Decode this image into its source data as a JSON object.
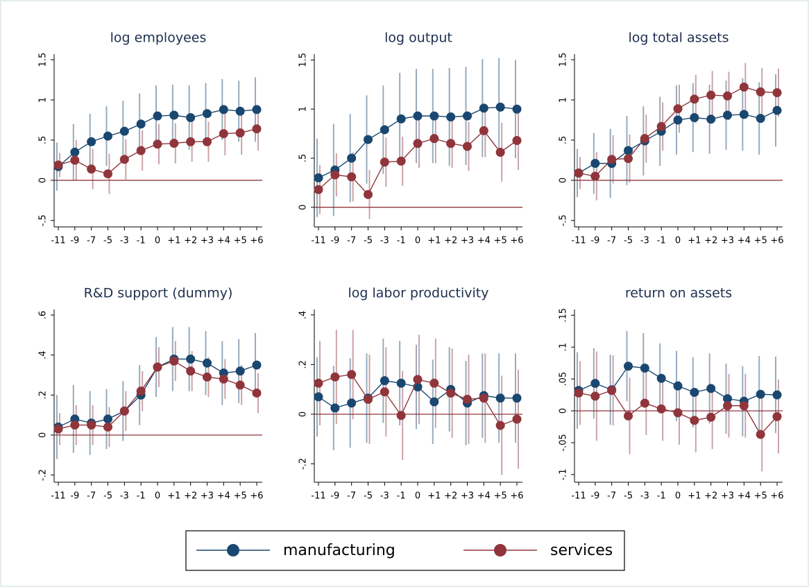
{
  "chart_data": [
    {
      "type": "line",
      "title": "log employees",
      "categories": [
        "-11",
        "-9",
        "-7",
        "-5",
        "-3",
        "-1",
        "0",
        "+1",
        "+2",
        "+3",
        "+4",
        "+5",
        "+6"
      ],
      "ylim": [
        -0.58,
        1.57
      ],
      "yticks": [
        {
          "value": -0.5,
          "label": "-.5"
        },
        0,
        {
          "value": 0.5,
          "label": ".5"
        },
        1,
        1.5
      ],
      "hline": 0,
      "series": [
        {
          "name": "manufacturing",
          "color": "#1a476f",
          "values": [
            0.17,
            0.35,
            0.48,
            0.55,
            0.61,
            0.7,
            0.8,
            0.81,
            0.78,
            0.83,
            0.88,
            0.86,
            0.88
          ],
          "errors": [
            0.3,
            0.35,
            0.35,
            0.37,
            0.38,
            0.38,
            0.38,
            0.38,
            0.4,
            0.38,
            0.38,
            0.38,
            0.4
          ]
        },
        {
          "name": "services",
          "color": "#90353b",
          "values": [
            0.19,
            0.25,
            0.14,
            0.08,
            0.26,
            0.37,
            0.45,
            0.46,
            0.48,
            0.48,
            0.58,
            0.59,
            0.64
          ],
          "errors": [
            0.15,
            0.25,
            0.25,
            0.25,
            0.25,
            0.25,
            0.25,
            0.25,
            0.25,
            0.25,
            0.27,
            0.27,
            0.27
          ]
        }
      ]
    },
    {
      "type": "line",
      "title": "log output",
      "categories": [
        "-11",
        "-9",
        "-7",
        "-5",
        "-3",
        "-1",
        "0",
        "+1",
        "+2",
        "+3",
        "+4",
        "+5",
        "+6"
      ],
      "ylim": [
        -0.2,
        1.56
      ],
      "yticks": [
        0,
        {
          "value": 0.5,
          "label": ".5"
        },
        1,
        1.5
      ],
      "hline": 0,
      "series": [
        {
          "color": "#1a476f",
          "values": [
            0.3,
            0.38,
            0.5,
            0.69,
            0.79,
            0.9,
            0.93,
            0.93,
            0.92,
            0.93,
            1.01,
            1.02,
            1.0
          ],
          "errors": [
            0.4,
            0.47,
            0.45,
            0.45,
            0.45,
            0.47,
            0.48,
            0.48,
            0.5,
            0.5,
            0.5,
            0.5,
            0.5
          ]
        },
        {
          "color": "#90353b",
          "values": [
            0.18,
            0.33,
            0.31,
            0.13,
            0.46,
            0.47,
            0.65,
            0.7,
            0.65,
            0.62,
            0.78,
            0.56,
            0.68
          ],
          "errors": [
            0.25,
            0.22,
            0.25,
            0.25,
            0.25,
            0.25,
            0.25,
            0.25,
            0.25,
            0.25,
            0.27,
            0.3,
            0.3
          ]
        }
      ]
    },
    {
      "type": "line",
      "title": "log total assets",
      "categories": [
        "-11",
        "-9",
        "-7",
        "-5",
        "-3",
        "-1",
        "0",
        "+1",
        "+2",
        "+3",
        "+4",
        "+5",
        "+6"
      ],
      "ylim": [
        -0.58,
        1.57
      ],
      "yticks": [
        {
          "value": -0.5,
          "label": "-.5"
        },
        0,
        {
          "value": 0.5,
          "label": ".5"
        },
        1,
        1.5
      ],
      "hline": 0,
      "series": [
        {
          "color": "#1a476f",
          "values": [
            0.09,
            0.21,
            0.21,
            0.37,
            0.49,
            0.61,
            0.75,
            0.78,
            0.76,
            0.81,
            0.82,
            0.77,
            0.87
          ],
          "errors": [
            0.3,
            0.38,
            0.43,
            0.43,
            0.43,
            0.43,
            0.43,
            0.43,
            0.43,
            0.43,
            0.45,
            0.45,
            0.45
          ]
        },
        {
          "color": "#90353b",
          "values": [
            0.09,
            0.05,
            0.26,
            0.27,
            0.52,
            0.67,
            0.89,
            1.01,
            1.06,
            1.05,
            1.16,
            1.1,
            1.09
          ],
          "errors": [
            0.2,
            0.3,
            0.3,
            0.3,
            0.3,
            0.3,
            0.3,
            0.3,
            0.3,
            0.3,
            0.3,
            0.3,
            0.3
          ]
        }
      ]
    },
    {
      "type": "line",
      "title": "R&D support (dummy)",
      "categories": [
        "-11",
        "-9",
        "-7",
        "-5",
        "-3",
        "-1",
        "0",
        "+1",
        "+2",
        "+3",
        "+4",
        "+5",
        "+6"
      ],
      "ylim": [
        -0.236,
        0.628
      ],
      "yticks": [
        {
          "value": -0.2,
          "label": "-.2"
        },
        0,
        {
          "value": 0.2,
          "label": ".2"
        },
        {
          "value": 0.4,
          "label": ".4"
        },
        {
          "value": 0.6,
          "label": ".6"
        }
      ],
      "hline": 0,
      "series": [
        {
          "color": "#1a476f",
          "values": [
            0.04,
            0.08,
            0.06,
            0.08,
            0.12,
            0.2,
            0.34,
            0.38,
            0.38,
            0.36,
            0.31,
            0.32,
            0.35
          ],
          "errors": [
            0.16,
            0.17,
            0.16,
            0.15,
            0.15,
            0.15,
            0.15,
            0.16,
            0.16,
            0.16,
            0.16,
            0.16,
            0.16
          ]
        },
        {
          "color": "#90353b",
          "values": [
            0.03,
            0.05,
            0.05,
            0.04,
            0.12,
            0.22,
            0.34,
            0.37,
            0.32,
            0.29,
            0.28,
            0.25,
            0.21
          ],
          "errors": [
            0.08,
            0.1,
            0.1,
            0.1,
            0.1,
            0.1,
            0.1,
            0.1,
            0.1,
            0.1,
            0.1,
            0.1,
            0.1
          ]
        }
      ]
    },
    {
      "type": "line",
      "title": "log labor productivity",
      "categories": [
        "-11",
        "-9",
        "-7",
        "-5",
        "-3",
        "-1",
        "0",
        "+1",
        "+2",
        "+3",
        "+4",
        "+5",
        "+6"
      ],
      "ylim": [
        -0.274,
        0.422
      ],
      "yticks": [
        {
          "value": -0.2,
          "label": "-.2"
        },
        0,
        {
          "value": 0.2,
          "label": ".2"
        },
        {
          "value": 0.4,
          "label": ".4"
        }
      ],
      "hline": 0,
      "series": [
        {
          "color": "#1a476f",
          "values": [
            0.07,
            0.025,
            0.045,
            0.065,
            0.135,
            0.125,
            0.11,
            0.05,
            0.1,
            0.045,
            0.075,
            0.065,
            0.065
          ],
          "errors": [
            0.16,
            0.17,
            0.18,
            0.18,
            0.17,
            0.17,
            0.17,
            0.17,
            0.17,
            0.17,
            0.17,
            0.18,
            0.18
          ]
        },
        {
          "color": "#90353b",
          "values": [
            0.125,
            0.15,
            0.16,
            0.06,
            0.09,
            -0.005,
            0.14,
            0.125,
            0.085,
            0.06,
            0.065,
            -0.045,
            -0.02
          ],
          "errors": [
            0.17,
            0.19,
            0.18,
            0.18,
            0.18,
            0.18,
            0.18,
            0.18,
            0.18,
            0.18,
            0.18,
            0.2,
            0.2
          ]
        }
      ]
    },
    {
      "type": "line",
      "title": "return on assets",
      "categories": [
        "-11",
        "-9",
        "-7",
        "-5",
        "-3",
        "-1",
        "0",
        "+1",
        "+2",
        "+3",
        "+4",
        "+5",
        "+6"
      ],
      "ylim": [
        -0.112,
        0.159
      ],
      "yticks": [
        {
          "value": -0.1,
          "label": "-.1"
        },
        {
          "value": -0.05,
          "label": "-.05"
        },
        0,
        {
          "value": 0.05,
          "label": ".05"
        },
        {
          "value": 0.1,
          "label": ".1"
        },
        {
          "value": 0.15,
          "label": ".15"
        }
      ],
      "hline": 0,
      "series": [
        {
          "color": "#1a476f",
          "values": [
            0.032,
            0.043,
            0.033,
            0.07,
            0.067,
            0.051,
            0.039,
            0.029,
            0.035,
            0.019,
            0.015,
            0.026,
            0.025
          ],
          "errors": [
            0.06,
            0.055,
            0.055,
            0.055,
            0.055,
            0.055,
            0.055,
            0.055,
            0.055,
            0.055,
            0.055,
            0.06,
            0.06
          ]
        },
        {
          "color": "#90353b",
          "values": [
            0.028,
            0.023,
            0.032,
            -0.008,
            0.012,
            0.003,
            -0.003,
            -0.015,
            -0.01,
            0.008,
            0.008,
            -0.037,
            -0.009
          ],
          "errors": [
            0.05,
            0.07,
            0.055,
            0.06,
            0.05,
            0.05,
            0.05,
            0.05,
            0.05,
            0.05,
            0.05,
            0.058,
            0.058
          ]
        }
      ]
    }
  ]
}
